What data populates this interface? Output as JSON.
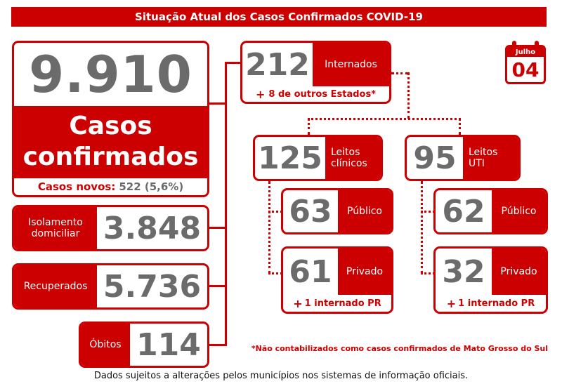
{
  "title": "Situação Atual dos Casos Confirmados COVID-19",
  "date": {
    "month": "Julho",
    "day": "04"
  },
  "confirmed": {
    "number": "9.910",
    "label_line1": "Casos",
    "label_line2": "confirmados",
    "new_label": "Casos novos:",
    "new_value": "522 (5,6%)"
  },
  "isolation": {
    "label_line1": "Isolamento",
    "label_line2": "domiciliar",
    "number": "3.848"
  },
  "recovered": {
    "label": "Recuperados",
    "number": "5.736"
  },
  "deaths": {
    "label": "Óbitos",
    "number": "114"
  },
  "hospitalized": {
    "number": "212",
    "label": "Internados",
    "note_plus": "+",
    "note": "8 de outros Estados*"
  },
  "clinical": {
    "number": "125",
    "label_line1": "Leitos",
    "label_line2": "clínicos",
    "public": {
      "number": "63",
      "label": "Público"
    },
    "private": {
      "number": "61",
      "label": "Privado",
      "note_plus": "+",
      "note": "1 internado PR"
    }
  },
  "icu": {
    "number": "95",
    "label_line1": "Leitos",
    "label_line2": "UTI",
    "public": {
      "number": "62",
      "label": "Público"
    },
    "private": {
      "number": "32",
      "label": "Privado",
      "note_plus": "+",
      "note": "1 internado PR"
    }
  },
  "footnote": "*Não contabilizados como casos confirmados de Mato Grosso do Sul",
  "disclaimer": "Dados sujeitos a alterações pelos municípios nos sistemas de informação oficiais.",
  "colors": {
    "accent": "#cc0000",
    "number_gray": "#6b6b6b"
  }
}
